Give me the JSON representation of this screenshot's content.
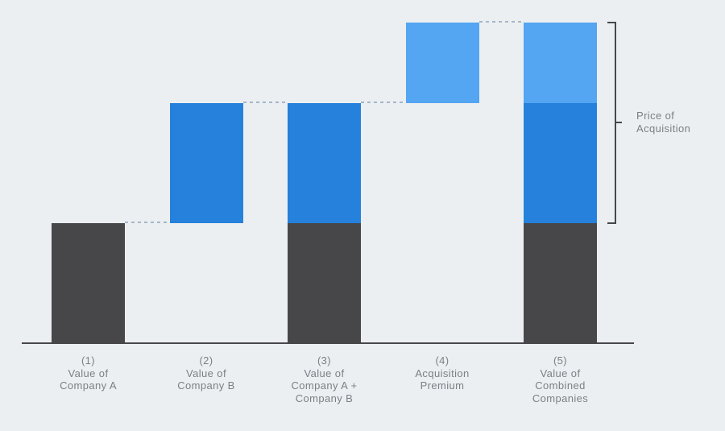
{
  "chart_data": {
    "type": "bar",
    "subtype": "waterfall-stacked",
    "title": "",
    "xlabel": "",
    "ylabel": "",
    "value_axis": {
      "visible": false,
      "units": "relative value (axis unlabeled)",
      "range": [
        0,
        400
      ]
    },
    "grid": false,
    "legend": "none",
    "categories": [
      "(1) Value of Company A",
      "(2) Value of Company B",
      "(3) Value of Company A + Company B",
      "(4) Acquisition Premium",
      "(5) Value of Combined Companies"
    ],
    "bars": [
      {
        "label_lines": [
          "(1)",
          "Value of",
          "Company A"
        ],
        "base": 0,
        "segments": [
          {
            "name": "company-a-value",
            "color": "dark",
            "value": 150
          }
        ]
      },
      {
        "label_lines": [
          "(2)",
          "Value of",
          "Company B"
        ],
        "base": 150,
        "segments": [
          {
            "name": "company-b-value",
            "color": "blue",
            "value": 150
          }
        ]
      },
      {
        "label_lines": [
          "(3)",
          "Value of",
          "Company A +",
          "Company B"
        ],
        "base": 0,
        "segments": [
          {
            "name": "company-a-value",
            "color": "dark",
            "value": 150
          },
          {
            "name": "company-b-value",
            "color": "blue",
            "value": 150
          }
        ]
      },
      {
        "label_lines": [
          "(4)",
          "Acquisition",
          "Premium"
        ],
        "base": 300,
        "segments": [
          {
            "name": "acquisition-premium",
            "color": "light_blue",
            "value": 100
          }
        ]
      },
      {
        "label_lines": [
          "(5)",
          "Value of",
          "Combined",
          "Companies"
        ],
        "base": 0,
        "segments": [
          {
            "name": "company-a-value",
            "color": "dark",
            "value": 150
          },
          {
            "name": "company-b-value",
            "color": "blue",
            "value": 150
          },
          {
            "name": "acquisition-premium",
            "color": "light_blue",
            "value": 100
          }
        ]
      }
    ],
    "connectors": [
      {
        "from": 0,
        "to": 1,
        "level": 150
      },
      {
        "from": 1,
        "to": 2,
        "level": 300
      },
      {
        "from": 2,
        "to": 3,
        "level": 300
      },
      {
        "from": 3,
        "to": 4,
        "level": 400
      }
    ],
    "bracket": {
      "bar_index": 4,
      "from_level": 150,
      "to_level": 400,
      "label_lines": [
        "Price of",
        "Acquisition"
      ]
    },
    "colors": {
      "background": "#ECEFF1",
      "dark": "#47474A",
      "blue": "#2581DB",
      "light_blue": "#54A5F2",
      "connector": "#A4B6CA",
      "axis": "#47474A",
      "bracket": "#47474A",
      "label_text": "#7C7F84"
    }
  }
}
